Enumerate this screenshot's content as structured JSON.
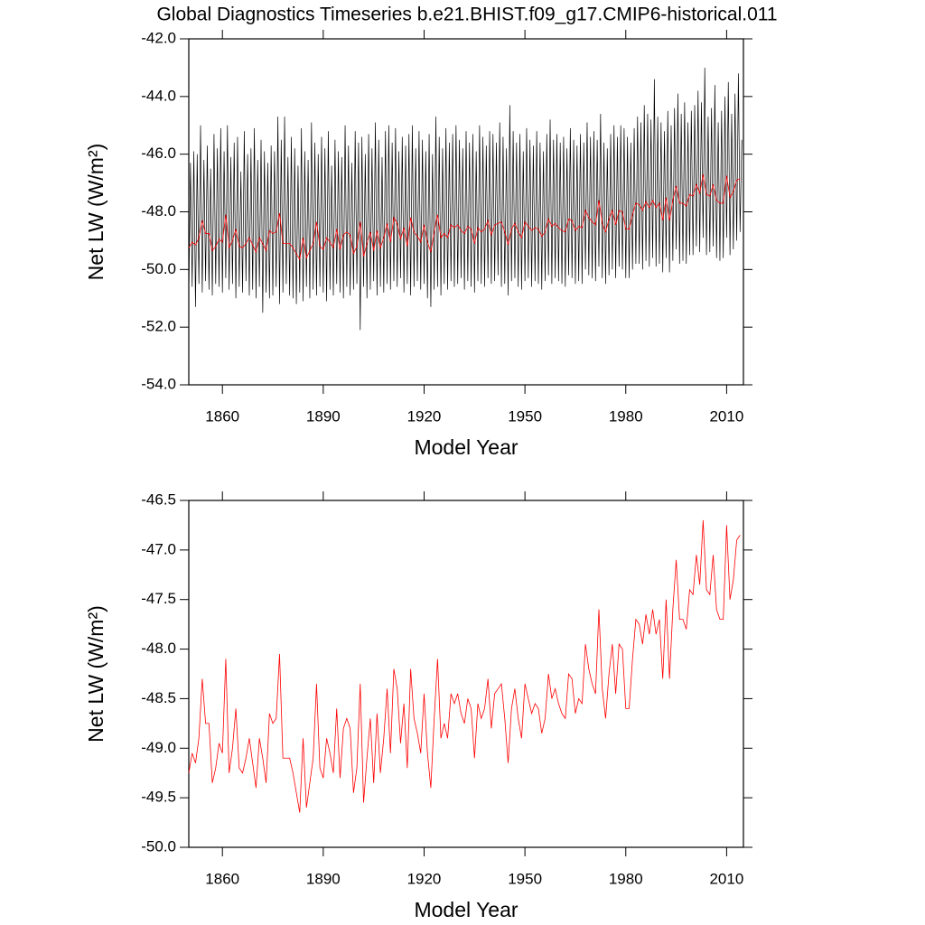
{
  "chart_data": [
    {
      "type": "line",
      "title": "Global Diagnostics Timeseries b.e21.BHIST.f09_g17.CMIP6-historical.011",
      "ylabel": "Net LW (W/m²)",
      "xlabel": "Model Year",
      "xlim": [
        1850,
        2015
      ],
      "ylim": [
        -54,
        -42
      ],
      "xticks": [
        1860,
        1890,
        1920,
        1950,
        1980,
        2010
      ],
      "yticks": [
        {
          "value": -54,
          "label": "-54.0"
        },
        {
          "value": -52,
          "label": "-52.0"
        },
        {
          "value": -50,
          "label": "-50.0"
        },
        {
          "value": -48,
          "label": "-48.0"
        },
        {
          "value": -46,
          "label": "-46.0"
        },
        {
          "value": -44,
          "label": "-44.0"
        },
        {
          "value": -42,
          "label": "-42.0"
        }
      ],
      "x": [
        1850,
        1851,
        1852,
        1853,
        1854,
        1855,
        1856,
        1857,
        1858,
        1859,
        1860,
        1861,
        1862,
        1863,
        1864,
        1865,
        1866,
        1867,
        1868,
        1869,
        1870,
        1871,
        1872,
        1873,
        1874,
        1875,
        1876,
        1877,
        1878,
        1879,
        1880,
        1881,
        1882,
        1883,
        1884,
        1885,
        1886,
        1887,
        1888,
        1889,
        1890,
        1891,
        1892,
        1893,
        1894,
        1895,
        1896,
        1897,
        1898,
        1899,
        1900,
        1901,
        1902,
        1903,
        1904,
        1905,
        1906,
        1907,
        1908,
        1909,
        1910,
        1911,
        1912,
        1913,
        1914,
        1915,
        1916,
        1917,
        1918,
        1919,
        1920,
        1921,
        1922,
        1923,
        1924,
        1925,
        1926,
        1927,
        1928,
        1929,
        1930,
        1931,
        1932,
        1933,
        1934,
        1935,
        1936,
        1937,
        1938,
        1939,
        1940,
        1941,
        1942,
        1943,
        1944,
        1945,
        1946,
        1947,
        1948,
        1949,
        1950,
        1951,
        1952,
        1953,
        1954,
        1955,
        1956,
        1957,
        1958,
        1959,
        1960,
        1961,
        1962,
        1963,
        1964,
        1965,
        1966,
        1967,
        1968,
        1969,
        1970,
        1971,
        1972,
        1973,
        1974,
        1975,
        1976,
        1977,
        1978,
        1979,
        1980,
        1981,
        1982,
        1983,
        1984,
        1985,
        1986,
        1987,
        1988,
        1989,
        1990,
        1991,
        1992,
        1993,
        1994,
        1995,
        1996,
        1997,
        1998,
        1999,
        2000,
        2001,
        2002,
        2003,
        2004,
        2005,
        2006,
        2007,
        2008,
        2009,
        2010,
        2011,
        2012,
        2013,
        2014
      ],
      "series": [
        {
          "color": "#000000",
          "trough": [
            -50.9,
            -50.6,
            -51.3,
            -50.5,
            -50.8,
            -50.4,
            -50.7,
            -50.9,
            -50.5,
            -50.6,
            -50.8,
            -50.3,
            -50.7,
            -50.5,
            -51.0,
            -50.6,
            -50.8,
            -50.4,
            -50.9,
            -50.7,
            -51.0,
            -50.6,
            -51.5,
            -50.8,
            -51.0,
            -50.9,
            -50.6,
            -51.2,
            -50.8,
            -50.5,
            -50.9,
            -51.0,
            -51.2,
            -50.8,
            -51.1,
            -50.6,
            -51.0,
            -50.7,
            -50.9,
            -50.6,
            -50.8,
            -51.1,
            -50.7,
            -50.9,
            -50.5,
            -50.8,
            -51.0,
            -50.6,
            -50.9,
            -50.7,
            -50.5,
            -52.1,
            -50.6,
            -51.0,
            -50.7,
            -50.4,
            -50.9,
            -50.6,
            -50.8,
            -50.5,
            -50.7,
            -50.4,
            -50.6,
            -50.3,
            -50.8,
            -50.5,
            -50.9,
            -50.6,
            -50.4,
            -50.7,
            -50.5,
            -51.0,
            -51.3,
            -50.7,
            -50.6,
            -50.9,
            -50.5,
            -50.7,
            -50.4,
            -50.6,
            -50.5,
            -50.3,
            -50.7,
            -50.4,
            -50.6,
            -50.8,
            -50.4,
            -50.5,
            -50.6,
            -50.3,
            -50.5,
            -50.4,
            -50.2,
            -50.6,
            -50.5,
            -50.9,
            -50.4,
            -50.3,
            -50.6,
            -50.7,
            -50.4,
            -50.3,
            -50.6,
            -50.4,
            -50.5,
            -50.7,
            -50.4,
            -50.2,
            -50.5,
            -50.3,
            -50.4,
            -50.5,
            -50.6,
            -50.2,
            -50.3,
            -50.5,
            -50.4,
            -50.5,
            -50.0,
            -50.2,
            -50.3,
            -50.4,
            -49.9,
            -50.3,
            -50.5,
            -50.2,
            -50.0,
            -50.3,
            -49.9,
            -50.0,
            -50.3,
            -50.3,
            -50.0,
            -49.8,
            -49.8,
            -50.0,
            -49.7,
            -49.9,
            -49.6,
            -49.9,
            -49.8,
            -50.1,
            -49.6,
            -50.1,
            -49.7,
            -49.3,
            -49.8,
            -49.7,
            -49.8,
            -49.5,
            -49.5,
            -49.2,
            -49.4,
            -48.9,
            -49.5,
            -49.4,
            -49.2,
            -49.6,
            -49.7,
            -49.6,
            -48.9,
            -49.5,
            -49.3,
            -49.0,
            -48.7
          ],
          "peak": [
            -46.3,
            -45.9,
            -46.0,
            -45.0,
            -46.2,
            -45.7,
            -46.5,
            -45.3,
            -45.8,
            -45.1,
            -45.9,
            -45.0,
            -46.1,
            -45.6,
            -45.4,
            -46.6,
            -45.2,
            -46.0,
            -45.8,
            -45.1,
            -46.2,
            -45.5,
            -45.9,
            -46.3,
            -45.7,
            -45.9,
            -44.7,
            -45.5,
            -44.7,
            -46.1,
            -45.4,
            -45.8,
            -46.4,
            -45.1,
            -45.9,
            -46.2,
            -44.9,
            -45.6,
            -46.0,
            -45.4,
            -45.8,
            -45.2,
            -46.4,
            -45.5,
            -45.9,
            -46.1,
            -45.0,
            -45.7,
            -46.3,
            -45.2,
            -45.6,
            -45.4,
            -46.0,
            -45.3,
            -45.8,
            -44.9,
            -45.5,
            -46.1,
            -45.2,
            -45.0,
            -45.6,
            -45.1,
            -45.9,
            -45.4,
            -45.7,
            -45.3,
            -45.0,
            -45.8,
            -45.2,
            -45.5,
            -45.9,
            -45.3,
            -46.0,
            -44.7,
            -45.4,
            -45.8,
            -45.1,
            -45.6,
            -45.3,
            -45.0,
            -45.5,
            -45.8,
            -45.2,
            -45.6,
            -45.3,
            -45.9,
            -45.0,
            -45.4,
            -45.7,
            -45.2,
            -45.3,
            -45.6,
            -44.9,
            -45.4,
            -45.8,
            -44.3,
            -45.2,
            -45.6,
            -45.3,
            -45.9,
            -45.1,
            -45.5,
            -45.7,
            -45.2,
            -45.6,
            -45.9,
            -45.3,
            -44.8,
            -45.5,
            -45.3,
            -45.6,
            -45.4,
            -45.8,
            -45.1,
            -45.5,
            -45.7,
            -45.3,
            -45.6,
            -44.9,
            -45.4,
            -45.2,
            -45.5,
            -44.6,
            -45.6,
            -45.8,
            -45.3,
            -45.0,
            -45.4,
            -45.0,
            -45.1,
            -45.4,
            -45.6,
            -45.1,
            -44.7,
            -44.9,
            -44.3,
            -44.6,
            -44.8,
            -43.4,
            -44.7,
            -44.9,
            -45.2,
            -44.5,
            -45.0,
            -44.4,
            -43.9,
            -44.6,
            -44.2,
            -44.9,
            -44.5,
            -44.3,
            -43.8,
            -44.2,
            -43.0,
            -44.7,
            -44.4,
            -43.6,
            -44.9,
            -44.5,
            -44.0,
            -43.5,
            -44.6,
            -43.9,
            -43.2,
            -45.5
          ]
        },
        {
          "color": "#ff0000",
          "values": [
            -49.25,
            -49.05,
            -49.15,
            -48.9,
            -48.3,
            -48.75,
            -48.75,
            -49.35,
            -49.2,
            -48.95,
            -49.05,
            -48.1,
            -49.25,
            -49.0,
            -48.6,
            -49.2,
            -49.25,
            -49.1,
            -48.9,
            -49.15,
            -49.4,
            -48.9,
            -49.1,
            -49.35,
            -48.65,
            -48.75,
            -48.7,
            -48.05,
            -49.1,
            -49.1,
            -49.1,
            -49.25,
            -49.45,
            -49.65,
            -48.9,
            -49.6,
            -49.35,
            -49.1,
            -48.35,
            -49.2,
            -49.3,
            -48.9,
            -49.05,
            -49.25,
            -48.6,
            -49.3,
            -48.8,
            -48.7,
            -48.8,
            -49.45,
            -49.2,
            -48.35,
            -49.55,
            -49.1,
            -48.7,
            -49.35,
            -48.65,
            -49.25,
            -48.9,
            -48.4,
            -49.05,
            -48.2,
            -48.4,
            -48.95,
            -48.55,
            -49.2,
            -48.2,
            -48.7,
            -48.85,
            -49.05,
            -48.45,
            -49.05,
            -49.4,
            -48.7,
            -48.1,
            -48.9,
            -48.75,
            -48.9,
            -48.45,
            -48.55,
            -48.45,
            -48.65,
            -48.75,
            -48.5,
            -48.6,
            -49.1,
            -48.55,
            -48.7,
            -48.6,
            -48.3,
            -48.8,
            -48.45,
            -48.4,
            -48.35,
            -48.7,
            -49.15,
            -48.6,
            -48.4,
            -48.7,
            -48.9,
            -48.35,
            -48.5,
            -48.65,
            -48.55,
            -48.6,
            -48.85,
            -48.7,
            -48.25,
            -48.5,
            -48.4,
            -48.55,
            -48.65,
            -48.7,
            -48.25,
            -48.3,
            -48.65,
            -48.5,
            -48.55,
            -47.95,
            -48.2,
            -48.35,
            -48.45,
            -47.6,
            -48.4,
            -48.7,
            -48.25,
            -47.95,
            -48.45,
            -47.95,
            -48.0,
            -48.6,
            -48.6,
            -48.1,
            -47.7,
            -47.75,
            -47.95,
            -47.65,
            -47.85,
            -47.6,
            -47.85,
            -47.7,
            -48.3,
            -47.5,
            -48.3,
            -47.6,
            -47.1,
            -47.7,
            -47.7,
            -47.8,
            -47.4,
            -47.45,
            -47.05,
            -47.35,
            -46.7,
            -47.4,
            -47.45,
            -47.05,
            -47.6,
            -47.7,
            -47.7,
            -46.75,
            -47.5,
            -47.3,
            -46.9,
            -46.85
          ]
        }
      ]
    },
    {
      "type": "line",
      "ylabel": "Net LW (W/m²)",
      "xlabel": "Model Year",
      "xlim": [
        1850,
        2015
      ],
      "ylim": [
        -50,
        -46.5
      ],
      "xticks": [
        1860,
        1890,
        1920,
        1950,
        1980,
        2010
      ],
      "yticks": [
        {
          "value": -50,
          "label": "-50.0"
        },
        -49.5,
        {
          "value": -49,
          "label": "-49.0"
        },
        -48.5,
        {
          "value": -48,
          "label": "-48.0"
        },
        -47.5,
        {
          "value": -47,
          "label": "-47.0"
        },
        -46.5
      ],
      "x": [
        1850,
        1851,
        1852,
        1853,
        1854,
        1855,
        1856,
        1857,
        1858,
        1859,
        1860,
        1861,
        1862,
        1863,
        1864,
        1865,
        1866,
        1867,
        1868,
        1869,
        1870,
        1871,
        1872,
        1873,
        1874,
        1875,
        1876,
        1877,
        1878,
        1879,
        1880,
        1881,
        1882,
        1883,
        1884,
        1885,
        1886,
        1887,
        1888,
        1889,
        1890,
        1891,
        1892,
        1893,
        1894,
        1895,
        1896,
        1897,
        1898,
        1899,
        1900,
        1901,
        1902,
        1903,
        1904,
        1905,
        1906,
        1907,
        1908,
        1909,
        1910,
        1911,
        1912,
        1913,
        1914,
        1915,
        1916,
        1917,
        1918,
        1919,
        1920,
        1921,
        1922,
        1923,
        1924,
        1925,
        1926,
        1927,
        1928,
        1929,
        1930,
        1931,
        1932,
        1933,
        1934,
        1935,
        1936,
        1937,
        1938,
        1939,
        1940,
        1941,
        1942,
        1943,
        1944,
        1945,
        1946,
        1947,
        1948,
        1949,
        1950,
        1951,
        1952,
        1953,
        1954,
        1955,
        1956,
        1957,
        1958,
        1959,
        1960,
        1961,
        1962,
        1963,
        1964,
        1965,
        1966,
        1967,
        1968,
        1969,
        1970,
        1971,
        1972,
        1973,
        1974,
        1975,
        1976,
        1977,
        1978,
        1979,
        1980,
        1981,
        1982,
        1983,
        1984,
        1985,
        1986,
        1987,
        1988,
        1989,
        1990,
        1991,
        1992,
        1993,
        1994,
        1995,
        1996,
        1997,
        1998,
        1999,
        2000,
        2001,
        2002,
        2003,
        2004,
        2005,
        2006,
        2007,
        2008,
        2009,
        2010,
        2011,
        2012,
        2013,
        2014
      ],
      "series": [
        {
          "color": "#ff0000",
          "values": [
            -49.25,
            -49.05,
            -49.15,
            -48.9,
            -48.3,
            -48.75,
            -48.75,
            -49.35,
            -49.2,
            -48.95,
            -49.05,
            -48.1,
            -49.25,
            -49.0,
            -48.6,
            -49.2,
            -49.25,
            -49.1,
            -48.9,
            -49.15,
            -49.4,
            -48.9,
            -49.1,
            -49.35,
            -48.65,
            -48.75,
            -48.7,
            -48.05,
            -49.1,
            -49.1,
            -49.1,
            -49.25,
            -49.45,
            -49.65,
            -48.9,
            -49.6,
            -49.35,
            -49.1,
            -48.35,
            -49.2,
            -49.3,
            -48.9,
            -49.05,
            -49.25,
            -48.6,
            -49.3,
            -48.8,
            -48.7,
            -48.8,
            -49.45,
            -49.2,
            -48.35,
            -49.55,
            -49.1,
            -48.7,
            -49.35,
            -48.65,
            -49.25,
            -48.9,
            -48.4,
            -49.05,
            -48.2,
            -48.4,
            -48.95,
            -48.55,
            -49.2,
            -48.2,
            -48.7,
            -48.85,
            -49.05,
            -48.45,
            -49.05,
            -49.4,
            -48.7,
            -48.1,
            -48.9,
            -48.75,
            -48.9,
            -48.45,
            -48.55,
            -48.45,
            -48.65,
            -48.75,
            -48.5,
            -48.6,
            -49.1,
            -48.55,
            -48.7,
            -48.6,
            -48.3,
            -48.8,
            -48.45,
            -48.4,
            -48.35,
            -48.7,
            -49.15,
            -48.6,
            -48.4,
            -48.7,
            -48.9,
            -48.35,
            -48.5,
            -48.65,
            -48.55,
            -48.6,
            -48.85,
            -48.7,
            -48.25,
            -48.5,
            -48.4,
            -48.55,
            -48.65,
            -48.7,
            -48.25,
            -48.3,
            -48.65,
            -48.5,
            -48.55,
            -47.95,
            -48.2,
            -48.35,
            -48.45,
            -47.6,
            -48.4,
            -48.7,
            -48.25,
            -47.95,
            -48.45,
            -47.95,
            -48.0,
            -48.6,
            -48.6,
            -48.1,
            -47.7,
            -47.75,
            -47.95,
            -47.65,
            -47.85,
            -47.6,
            -47.85,
            -47.7,
            -48.3,
            -47.5,
            -48.3,
            -47.6,
            -47.1,
            -47.7,
            -47.7,
            -47.8,
            -47.4,
            -47.45,
            -47.05,
            -47.35,
            -46.7,
            -47.4,
            -47.45,
            -47.05,
            -47.6,
            -47.7,
            -47.7,
            -46.75,
            -47.5,
            -47.3,
            -46.9,
            -46.85
          ]
        }
      ]
    }
  ]
}
